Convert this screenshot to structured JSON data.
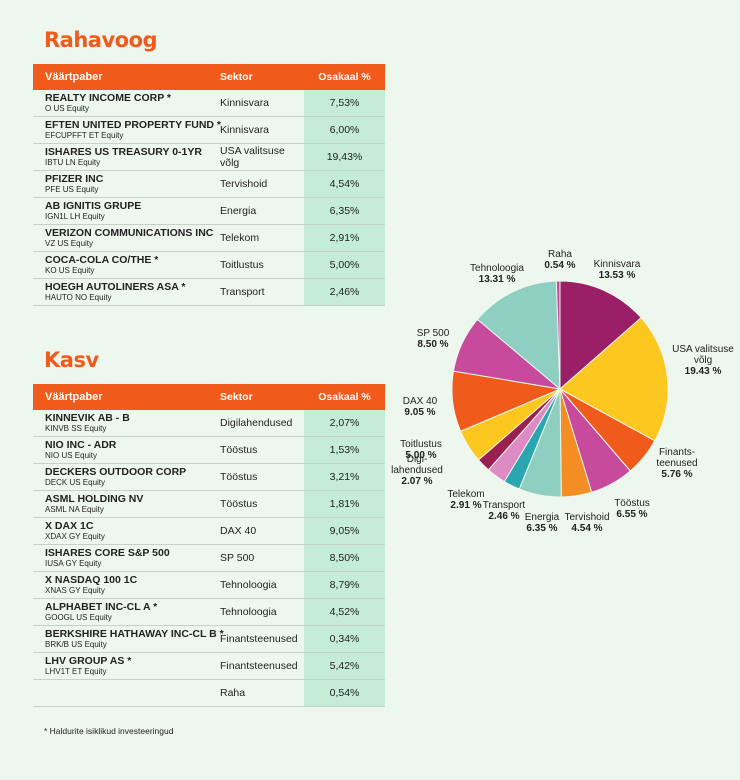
{
  "rahavoog": {
    "title": "Rahavoog",
    "headers": [
      "Väärtpaber",
      "Sektor",
      "Osakaal %"
    ],
    "rows": [
      {
        "name": "REALTY INCOME CORP *",
        "ticker": "O US Equity",
        "sector": "Kinnisvara",
        "share": "7,53%"
      },
      {
        "name": "EFTEN UNITED PROPERTY FUND *",
        "ticker": "EFCUPFFT ET Equity",
        "sector": "Kinnisvara",
        "share": "6,00%"
      },
      {
        "name": "ISHARES US TREASURY 0-1YR",
        "ticker": "IBTU LN Equity",
        "sector": "USA valitsuse võlg",
        "share": "19,43%"
      },
      {
        "name": "PFIZER INC",
        "ticker": "PFE US Equity",
        "sector": "Tervishoid",
        "share": "4,54%"
      },
      {
        "name": "AB IGNITIS GRUPE",
        "ticker": "IGN1L LH Equity",
        "sector": "Energia",
        "share": "6,35%"
      },
      {
        "name": "VERIZON COMMUNICATIONS INC",
        "ticker": "VZ US Equity",
        "sector": "Telekom",
        "share": "2,91%"
      },
      {
        "name": "COCA-COLA CO/THE *",
        "ticker": "KO US Equity",
        "sector": "Toitlustus",
        "share": "5,00%"
      },
      {
        "name": "HOEGH AUTOLINERS ASA *",
        "ticker": "HAUTO NO Equity",
        "sector": "Transport",
        "share": "2,46%"
      }
    ]
  },
  "kasv": {
    "title": "Kasv",
    "headers": [
      "Väärtpaber",
      "Sektor",
      "Osakaal %"
    ],
    "rows": [
      {
        "name": "KINNEVIK AB - B",
        "ticker": "KINVB SS Equity",
        "sector": "Digilahendused",
        "share": "2,07%"
      },
      {
        "name": "NIO INC - ADR",
        "ticker": "NIO US Equity",
        "sector": "Tööstus",
        "share": "1,53%"
      },
      {
        "name": "DECKERS OUTDOOR CORP",
        "ticker": "DECK US Equity",
        "sector": "Tööstus",
        "share": "3,21%"
      },
      {
        "name": "ASML HOLDING NV",
        "ticker": "ASML NA Equity",
        "sector": "Tööstus",
        "share": "1,81%"
      },
      {
        "name": "X DAX 1C",
        "ticker": "XDAX GY Equity",
        "sector": "DAX 40",
        "share": "9,05%"
      },
      {
        "name": "ISHARES CORE S&P 500",
        "ticker": "IUSA GY Equity",
        "sector": "SP 500",
        "share": "8,50%"
      },
      {
        "name": "X NASDAQ 100 1C",
        "ticker": "XNAS GY Equity",
        "sector": "Tehnoloogia",
        "share": "8,79%"
      },
      {
        "name": "ALPHABET INC-CL A *",
        "ticker": "GOOGL US Equity",
        "sector": "Tehnoloogia",
        "share": "4,52%"
      },
      {
        "name": "BERKSHIRE HATHAWAY INC-CL B *",
        "ticker": "BRK/B US Equity",
        "sector": "Finantsteenused",
        "share": "0,34%"
      },
      {
        "name": "LHV GROUP AS *",
        "ticker": "LHV1T ET Equity",
        "sector": "Finantsteenused",
        "share": "5,42%"
      },
      {
        "name": "",
        "ticker": "",
        "sector": "Raha",
        "share": "0,54%"
      }
    ]
  },
  "footnote": "* Haldurite isiklikud investeeringud",
  "chart_data": {
    "type": "pie",
    "slices": [
      {
        "label": [
          "Kinnisvara"
        ],
        "value": 13.53,
        "value_label": "13.53 %",
        "color": "#9b1f66"
      },
      {
        "label": [
          "USA valitsuse",
          "võlg"
        ],
        "value": 19.43,
        "value_label": "19.43 %",
        "color": "#fcc820"
      },
      {
        "label": [
          "Finants-",
          "teenused"
        ],
        "value": 5.76,
        "value_label": "5.76 %",
        "color": "#f05a1a"
      },
      {
        "label": [
          "Tööstus"
        ],
        "value": 6.55,
        "value_label": "6.55 %",
        "color": "#c84a9c"
      },
      {
        "label": [
          "Tervishoid"
        ],
        "value": 4.54,
        "value_label": "4.54 %",
        "color": "#f48d23"
      },
      {
        "label": [
          "Energia"
        ],
        "value": 6.35,
        "value_label": "6.35 %",
        "color": "#8fcfc2"
      },
      {
        "label": [
          "Transport"
        ],
        "value": 2.46,
        "value_label": "2.46 %",
        "color": "#2aa6b0"
      },
      {
        "label": [
          "Telekom"
        ],
        "value": 2.91,
        "value_label": "2.91 %",
        "color": "#dd8bc3"
      },
      {
        "label": [
          "Digi-",
          "lahendused"
        ],
        "value": 2.07,
        "value_label": "2.07 %",
        "color": "#9b1f50"
      },
      {
        "label": [
          "Toitlustus"
        ],
        "value": 5.0,
        "value_label": "5.00 %",
        "color": "#fcc820"
      },
      {
        "label": [
          "DAX 40"
        ],
        "value": 9.05,
        "value_label": "9.05 %",
        "color": "#f05a1a"
      },
      {
        "label": [
          "SP 500"
        ],
        "value": 8.5,
        "value_label": "8.50 %",
        "color": "#c84a9c"
      },
      {
        "label": [
          "Tehnoloogia"
        ],
        "value": 13.31,
        "value_label": "13.31 %",
        "color": "#8fcfc2"
      },
      {
        "label": [
          "Raha"
        ],
        "value": 0.54,
        "value_label": "0.54 %",
        "color": "#c84a9c"
      }
    ]
  }
}
